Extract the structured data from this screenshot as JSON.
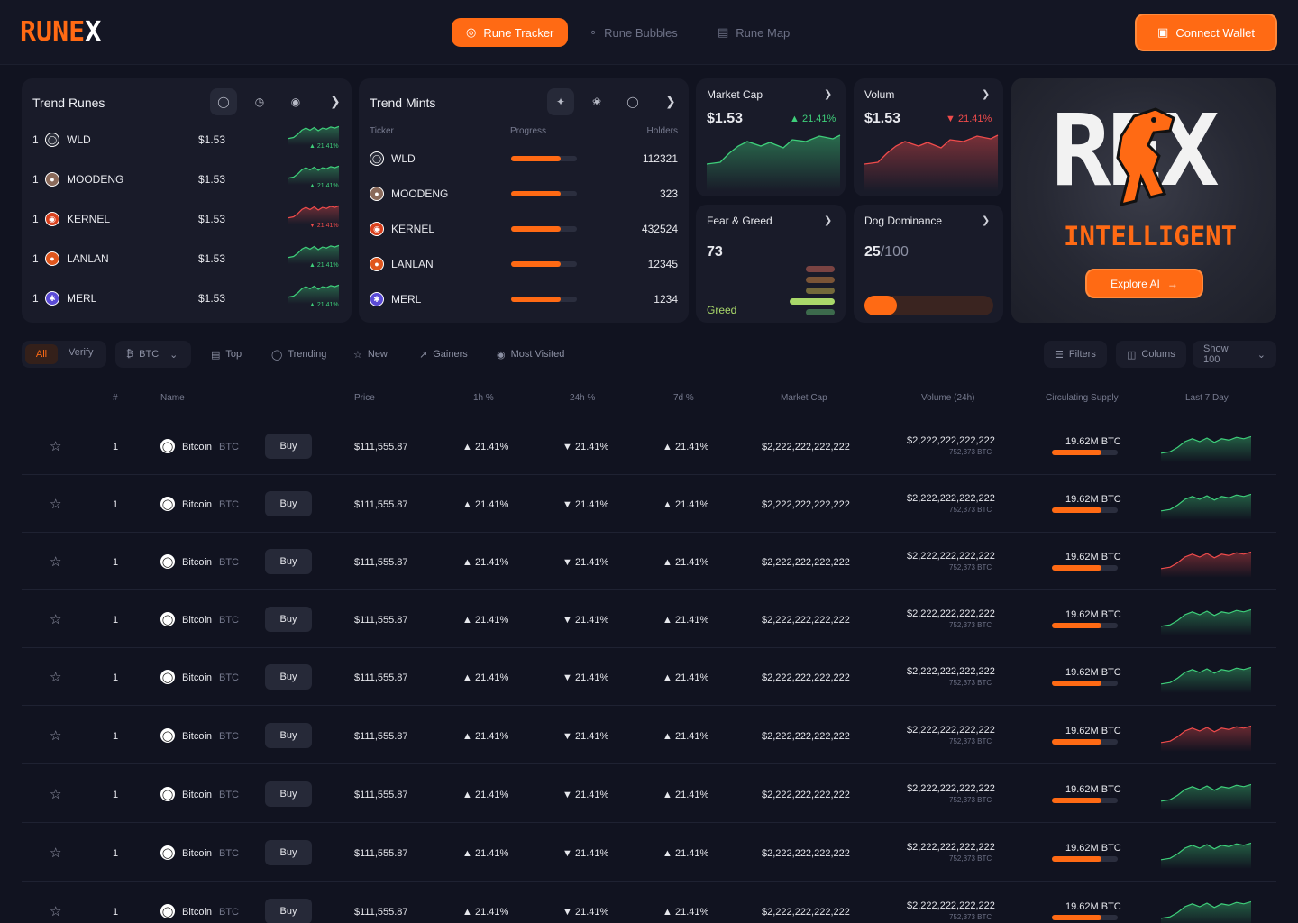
{
  "header": {
    "logo_text": "RUNE",
    "logo_x": "X",
    "nav": [
      {
        "label": "Rune Tracker",
        "icon": "target-icon",
        "active": true
      },
      {
        "label": "Rune Bubbles",
        "icon": "bubbles-icon",
        "active": false
      },
      {
        "label": "Rune Map",
        "icon": "map-icon",
        "active": false
      }
    ],
    "connect_label": "Connect Wallet"
  },
  "trend_runes": {
    "title": "Trend Runes",
    "items": [
      {
        "rank": "1",
        "name": "WLD",
        "price": "$1.53",
        "change": "21.41%",
        "trend": "up",
        "icon_color": "#2a2d3a"
      },
      {
        "rank": "1",
        "name": "MOODENG",
        "price": "$1.53",
        "change": "21.41%",
        "trend": "up",
        "icon_color": "#8a6a5a"
      },
      {
        "rank": "1",
        "name": "KERNEL",
        "price": "$1.53",
        "change": "21.41%",
        "trend": "down",
        "icon_color": "#d9411e"
      },
      {
        "rank": "1",
        "name": "LANLAN",
        "price": "$1.53",
        "change": "21.41%",
        "trend": "up",
        "icon_color": "#e0561d"
      },
      {
        "rank": "1",
        "name": "MERL",
        "price": "$1.53",
        "change": "21.41%",
        "trend": "up",
        "icon_color": "#5b4bd6"
      }
    ]
  },
  "trend_mints": {
    "title": "Trend Mints",
    "col_ticker": "Ticker",
    "col_progress": "Progress",
    "col_holders": "Holders",
    "items": [
      {
        "name": "WLD",
        "progress": 0.75,
        "holders": "112321",
        "icon_color": "#2a2d3a"
      },
      {
        "name": "MOODENG",
        "progress": 0.75,
        "holders": "323",
        "icon_color": "#8a6a5a"
      },
      {
        "name": "KERNEL",
        "progress": 0.75,
        "holders": "432524",
        "icon_color": "#d9411e"
      },
      {
        "name": "LANLAN",
        "progress": 0.75,
        "holders": "12345",
        "icon_color": "#e0561d"
      },
      {
        "name": "MERL",
        "progress": 0.75,
        "holders": "1234",
        "icon_color": "#5b4bd6"
      }
    ]
  },
  "market_cap": {
    "title": "Market Cap",
    "value": "$1.53",
    "change": "21.41%"
  },
  "volume": {
    "title": "Volum",
    "value": "$1.53",
    "change": "21.41%"
  },
  "fear_greed": {
    "title": "Fear & Greed",
    "value": "73",
    "label": "Greed"
  },
  "dog_dominance": {
    "title": "Dog Dominance",
    "value": "25",
    "denominator": "/100",
    "level": 0.25
  },
  "promo": {
    "logo_text": "REX",
    "tagline": "INTELLIGENT",
    "button_label": "Explore AI"
  },
  "filters": {
    "all": "All",
    "verify": "Verify",
    "currency": "BTC",
    "top": "Top",
    "trending": "Trending",
    "new": "New",
    "gainers": "Gainers",
    "most_visited": "Most Visited",
    "filters_label": "Filters",
    "columns_label": "Colums",
    "show_label": "Show 100"
  },
  "table": {
    "headers": {
      "rank": "#",
      "name": "Name",
      "price": "Price",
      "h1": "1h %",
      "h24": "24h %",
      "d7": "7d %",
      "mcap": "Market Cap",
      "volume": "Volume (24h)",
      "supply": "Circulating Supply",
      "last7": "Last 7 Day"
    },
    "buy_label": "Buy",
    "rows": [
      {
        "rank": "1",
        "name": "Bitcoin",
        "symbol": "BTC",
        "price": "$111,555.87",
        "h1": "21.41%",
        "h24": "21.41%",
        "d7": "21.41%",
        "mcap": "$2,222,222,222,222",
        "volume": "$2,222,222,222,222",
        "volume_btc": "752,373 BTC",
        "supply": "19.62M BTC",
        "supply_level": 0.75,
        "trend": "up"
      },
      {
        "rank": "1",
        "name": "Bitcoin",
        "symbol": "BTC",
        "price": "$111,555.87",
        "h1": "21.41%",
        "h24": "21.41%",
        "d7": "21.41%",
        "mcap": "$2,222,222,222,222",
        "volume": "$2,222,222,222,222",
        "volume_btc": "752,373 BTC",
        "supply": "19.62M BTC",
        "supply_level": 0.75,
        "trend": "up"
      },
      {
        "rank": "1",
        "name": "Bitcoin",
        "symbol": "BTC",
        "price": "$111,555.87",
        "h1": "21.41%",
        "h24": "21.41%",
        "d7": "21.41%",
        "mcap": "$2,222,222,222,222",
        "volume": "$2,222,222,222,222",
        "volume_btc": "752,373 BTC",
        "supply": "19.62M BTC",
        "supply_level": 0.75,
        "trend": "down"
      },
      {
        "rank": "1",
        "name": "Bitcoin",
        "symbol": "BTC",
        "price": "$111,555.87",
        "h1": "21.41%",
        "h24": "21.41%",
        "d7": "21.41%",
        "mcap": "$2,222,222,222,222",
        "volume": "$2,222,222,222,222",
        "volume_btc": "752,373 BTC",
        "supply": "19.62M BTC",
        "supply_level": 0.75,
        "trend": "up"
      },
      {
        "rank": "1",
        "name": "Bitcoin",
        "symbol": "BTC",
        "price": "$111,555.87",
        "h1": "21.41%",
        "h24": "21.41%",
        "d7": "21.41%",
        "mcap": "$2,222,222,222,222",
        "volume": "$2,222,222,222,222",
        "volume_btc": "752,373 BTC",
        "supply": "19.62M BTC",
        "supply_level": 0.75,
        "trend": "up"
      },
      {
        "rank": "1",
        "name": "Bitcoin",
        "symbol": "BTC",
        "price": "$111,555.87",
        "h1": "21.41%",
        "h24": "21.41%",
        "d7": "21.41%",
        "mcap": "$2,222,222,222,222",
        "volume": "$2,222,222,222,222",
        "volume_btc": "752,373 BTC",
        "supply": "19.62M BTC",
        "supply_level": 0.75,
        "trend": "down"
      },
      {
        "rank": "1",
        "name": "Bitcoin",
        "symbol": "BTC",
        "price": "$111,555.87",
        "h1": "21.41%",
        "h24": "21.41%",
        "d7": "21.41%",
        "mcap": "$2,222,222,222,222",
        "volume": "$2,222,222,222,222",
        "volume_btc": "752,373 BTC",
        "supply": "19.62M BTC",
        "supply_level": 0.75,
        "trend": "up"
      },
      {
        "rank": "1",
        "name": "Bitcoin",
        "symbol": "BTC",
        "price": "$111,555.87",
        "h1": "21.41%",
        "h24": "21.41%",
        "d7": "21.41%",
        "mcap": "$2,222,222,222,222",
        "volume": "$2,222,222,222,222",
        "volume_btc": "752,373 BTC",
        "supply": "19.62M BTC",
        "supply_level": 0.75,
        "trend": "up"
      },
      {
        "rank": "1",
        "name": "Bitcoin",
        "symbol": "BTC",
        "price": "$111,555.87",
        "h1": "21.41%",
        "h24": "21.41%",
        "d7": "21.41%",
        "mcap": "$2,222,222,222,222",
        "volume": "$2,222,222,222,222",
        "volume_btc": "752,373 BTC",
        "supply": "19.62M BTC",
        "supply_level": 0.75,
        "trend": "up"
      }
    ]
  },
  "colors": {
    "accent": "#ff6a14",
    "up": "#3ecf7a",
    "down": "#ef4b4b"
  }
}
